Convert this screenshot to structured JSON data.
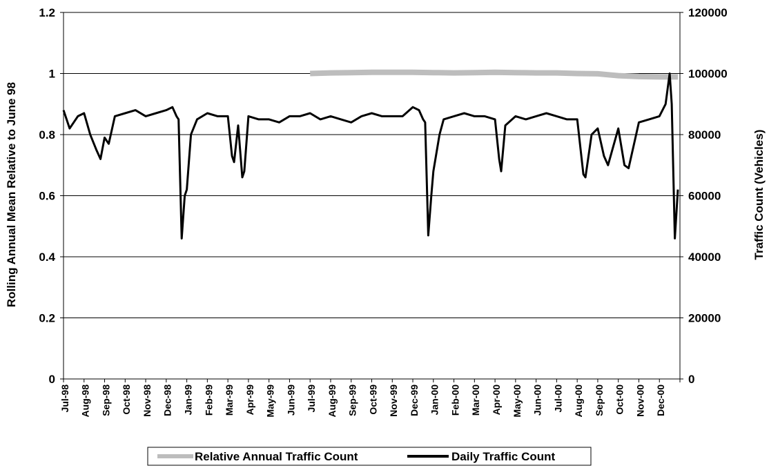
{
  "chart_data": {
    "type": "line",
    "y_left": {
      "label": "Rolling Annual Mean Relative to June 98",
      "range": [
        0,
        1.2
      ],
      "ticks": [
        "0",
        "0.2",
        "0.4",
        "0.6",
        "0.8",
        "1",
        "1.2"
      ]
    },
    "y_right": {
      "label": "Traffic Count (Vehicles)",
      "range": [
        0,
        120000
      ],
      "ticks": [
        "0",
        "20000",
        "40000",
        "60000",
        "80000",
        "100000",
        "120000"
      ]
    },
    "x_labels": [
      "Jul-98",
      "Aug-98",
      "Sep-98",
      "Oct-98",
      "Nov-98",
      "Dec-98",
      "Jan-99",
      "Feb-99",
      "Mar-99",
      "Apr-99",
      "May-99",
      "Jun-99",
      "Jul-99",
      "Aug-99",
      "Sep-99",
      "Oct-99",
      "Nov-99",
      "Dec-99",
      "Jan-00",
      "Feb-00",
      "Mar-00",
      "Apr-00",
      "May-00",
      "Jun-00",
      "Jul-00",
      "Aug-00",
      "Sep-00",
      "Oct-00",
      "Nov-00",
      "Dec-00"
    ],
    "grid": true,
    "legend_position": "bottom",
    "series": [
      {
        "name": "Relative Annual Traffic Count",
        "axis": "left",
        "color": "#bdbdbd",
        "x": [
          12,
          13,
          14,
          15,
          16,
          17,
          18,
          19,
          20,
          21,
          22,
          23,
          24,
          25,
          26,
          27,
          28,
          29,
          29.9
        ],
        "values": [
          1.0,
          1.002,
          1.003,
          1.004,
          1.004,
          1.004,
          1.003,
          1.002,
          1.003,
          1.004,
          1.003,
          1.002,
          1.002,
          1.0,
          0.999,
          0.993,
          0.99,
          0.989,
          0.989
        ]
      },
      {
        "name": "Daily Traffic Count",
        "axis": "right",
        "color": "#000000",
        "x": [
          0,
          0.3,
          0.7,
          1,
          1.3,
          1.6,
          1.8,
          2,
          2.2,
          2.5,
          3,
          3.5,
          4,
          4.5,
          5,
          5.3,
          5.5,
          5.6,
          5.75,
          5.9,
          6,
          6.2,
          6.5,
          7,
          7.5,
          8,
          8.2,
          8.3,
          8.5,
          8.7,
          8.8,
          9,
          9.5,
          10,
          10.5,
          11,
          11.5,
          12,
          12.5,
          13,
          13.5,
          14,
          14.5,
          15,
          15.5,
          16,
          16.5,
          17,
          17.3,
          17.5,
          17.6,
          17.75,
          17.9,
          18,
          18.3,
          18.5,
          19,
          19.5,
          20,
          20.5,
          21,
          21.2,
          21.3,
          21.5,
          22,
          22.5,
          23,
          23.5,
          24,
          24.5,
          25,
          25.3,
          25.4,
          25.7,
          26,
          26.3,
          26.5,
          27,
          27.3,
          27.5,
          28,
          28.5,
          29,
          29.3,
          29.5,
          29.6,
          29.75,
          29.9
        ],
        "values": [
          88000,
          82000,
          86000,
          87000,
          80000,
          75000,
          72000,
          79000,
          77000,
          86000,
          87000,
          88000,
          86000,
          87000,
          88000,
          89000,
          86000,
          85000,
          46000,
          60000,
          62000,
          80000,
          85000,
          87000,
          86000,
          86000,
          73000,
          71000,
          83000,
          66000,
          68000,
          86000,
          85000,
          85000,
          84000,
          86000,
          86000,
          87000,
          85000,
          86000,
          85000,
          84000,
          86000,
          87000,
          86000,
          86000,
          86000,
          89000,
          88000,
          85000,
          84000,
          47000,
          60000,
          68000,
          80000,
          85000,
          86000,
          87000,
          86000,
          86000,
          85000,
          72000,
          68000,
          83000,
          86000,
          85000,
          86000,
          87000,
          86000,
          85000,
          85000,
          67000,
          66000,
          80000,
          82000,
          73000,
          70000,
          82000,
          70000,
          69000,
          84000,
          85000,
          86000,
          90000,
          100000,
          90000,
          46000,
          62000
        ]
      }
    ]
  }
}
